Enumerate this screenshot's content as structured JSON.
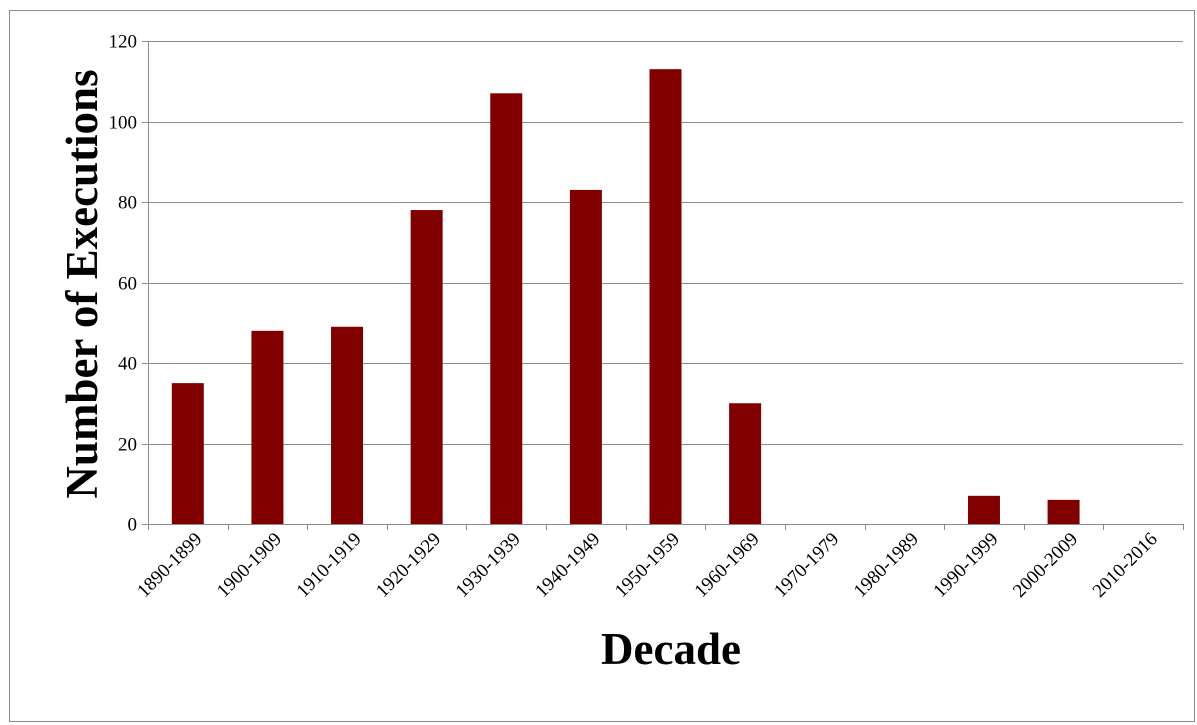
{
  "chart_data": {
    "type": "bar",
    "title": "",
    "xlabel": "Decade",
    "ylabel": "Number of Executions",
    "categories": [
      "1890-1899",
      "1900-1909",
      "1910-1919",
      "1920-1929",
      "1930-1939",
      "1940-1949",
      "1950-1959",
      "1960-1969",
      "1970-1979",
      "1980-1989",
      "1990-1999",
      "2000-2009",
      "2010-2016"
    ],
    "values": [
      35,
      48,
      49,
      78,
      107,
      83,
      113,
      30,
      0,
      0,
      7,
      6,
      0
    ],
    "ylim": [
      0,
      120
    ],
    "yticks": [
      0,
      20,
      40,
      60,
      80,
      100,
      120
    ],
    "grid": true,
    "legend": "none",
    "bar_color": "#800000",
    "grid_color": "#8c8c8c"
  }
}
